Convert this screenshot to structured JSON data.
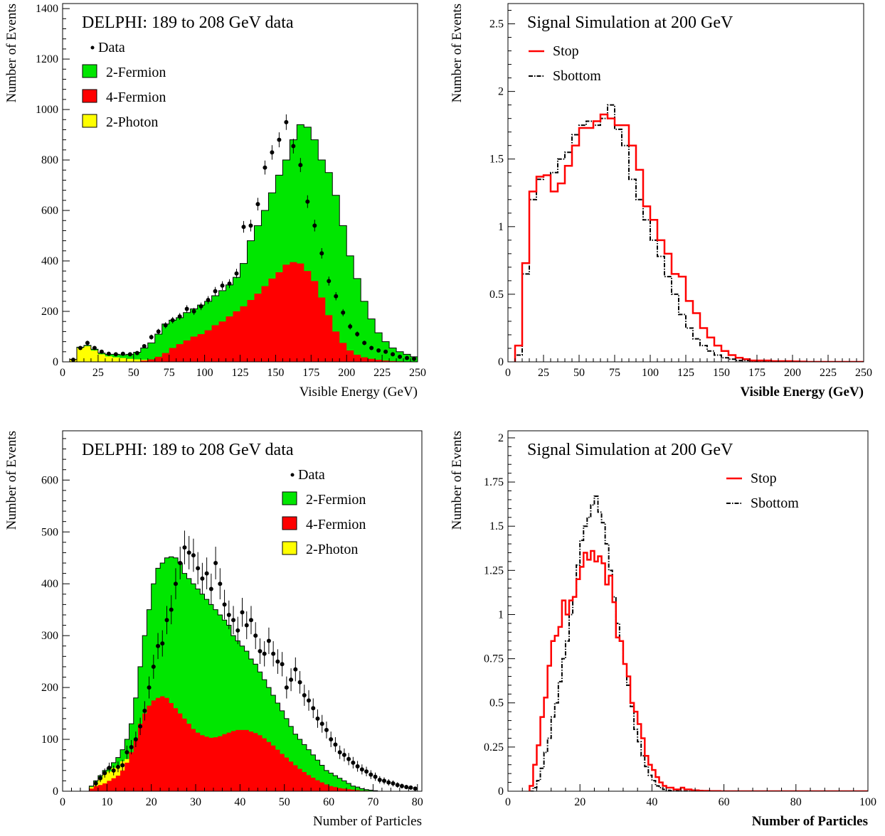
{
  "chart_data": [
    {
      "id": "p1",
      "type": "histogram",
      "title": "DELPHI: 189 to 208 GeV data",
      "xlabel": "Visible Energy (GeV)",
      "ylabel": "Number of Events",
      "xlim": [
        0,
        250
      ],
      "ylim": [
        0,
        1420
      ],
      "xticks": [
        0,
        25,
        50,
        75,
        100,
        125,
        150,
        175,
        200,
        225,
        250
      ],
      "yticks": [
        0,
        200,
        400,
        600,
        800,
        1000,
        1200,
        1400
      ],
      "bin_edges_start": 5,
      "bin_width": 5,
      "legend": {
        "data": "Data",
        "f2": "2-Fermion",
        "f4": "4-Fermion",
        "ph2": "2-Photon",
        "position": "top-left"
      },
      "series": [
        {
          "name": "2-Fermion",
          "color": "#00e600",
          "values": [
            10,
            58,
            65,
            50,
            35,
            30,
            30,
            28,
            30,
            38,
            55,
            75,
            110,
            150,
            165,
            175,
            195,
            210,
            225,
            240,
            262,
            282,
            305,
            335,
            390,
            480,
            540,
            600,
            670,
            740,
            800,
            880,
            940,
            930,
            880,
            800,
            750,
            660,
            540,
            420,
            330,
            240,
            170,
            115,
            80,
            55,
            40,
            30,
            20,
            15
          ]
        },
        {
          "name": "4-Fermion",
          "color": "#ff0000",
          "values": [
            0,
            0,
            0,
            0,
            0,
            0,
            0,
            0,
            0,
            0,
            5,
            10,
            20,
            35,
            55,
            70,
            85,
            100,
            110,
            125,
            145,
            160,
            180,
            200,
            220,
            245,
            270,
            300,
            330,
            355,
            385,
            395,
            390,
            360,
            320,
            255,
            185,
            120,
            75,
            45,
            28,
            18,
            12,
            8,
            5,
            3,
            2,
            1,
            1,
            0
          ]
        },
        {
          "name": "2-Photon",
          "color": "#ffff00",
          "values": [
            10,
            55,
            62,
            45,
            30,
            22,
            18,
            15,
            12,
            10,
            8,
            6,
            5,
            4,
            3,
            3,
            2,
            2,
            2,
            2,
            1,
            1,
            1,
            1,
            1,
            1,
            1,
            1,
            1,
            1,
            1,
            1,
            1,
            1,
            1,
            0,
            0,
            0,
            0,
            0,
            0,
            0,
            0,
            0,
            0,
            0,
            0,
            0,
            0,
            0
          ]
        },
        {
          "name": "Data",
          "x": [
            7.5,
            12.5,
            17.5,
            22.5,
            27.5,
            32.5,
            37.5,
            42.5,
            47.5,
            52.5,
            57.5,
            62.5,
            67.5,
            72.5,
            77.5,
            82.5,
            87.5,
            92.5,
            97.5,
            102.5,
            107.5,
            112.5,
            117.5,
            122.5,
            127.5,
            132.5,
            137.5,
            142.5,
            147.5,
            152.5,
            157.5,
            162.5,
            167.5,
            172.5,
            177.5,
            182.5,
            187.5,
            192.5,
            197.5,
            202.5,
            207.5,
            212.5,
            217.5,
            222.5,
            227.5,
            232.5,
            237.5,
            242.5,
            247.5
          ],
          "values": [
            8,
            55,
            75,
            55,
            40,
            32,
            30,
            32,
            30,
            35,
            62,
            98,
            120,
            145,
            165,
            180,
            210,
            200,
            220,
            245,
            280,
            302,
            310,
            350,
            535,
            540,
            625,
            770,
            830,
            880,
            950,
            855,
            780,
            635,
            540,
            430,
            320,
            260,
            195,
            140,
            110,
            75,
            55,
            45,
            40,
            30,
            20,
            15,
            12
          ]
        }
      ]
    },
    {
      "id": "p2",
      "type": "line",
      "title": "Signal Simulation at 200 GeV",
      "xlabel": "Visible Energy (GeV)",
      "ylabel": "Number of Events",
      "xlim": [
        0,
        250
      ],
      "ylim": [
        0,
        2.65
      ],
      "xticks": [
        0,
        25,
        50,
        75,
        100,
        125,
        150,
        175,
        200,
        225,
        250
      ],
      "yticks": [
        0,
        0.5,
        1,
        1.5,
        2,
        2.5
      ],
      "bin_edges_start": 5,
      "bin_width": 5,
      "legend": {
        "stop": "Stop",
        "sbottom": "Sbottom",
        "position": "top-left"
      },
      "series": [
        {
          "name": "Stop",
          "color": "#ff0000",
          "values": [
            0.12,
            0.73,
            1.26,
            1.37,
            1.38,
            1.26,
            1.32,
            1.45,
            1.6,
            1.73,
            1.73,
            1.78,
            1.83,
            1.8,
            1.75,
            1.75,
            1.6,
            1.42,
            1.15,
            1.05,
            0.9,
            0.8,
            0.65,
            0.63,
            0.45,
            0.36,
            0.25,
            0.18,
            0.12,
            0.08,
            0.05,
            0.03,
            0.02,
            0.01,
            0.01,
            0.01,
            0.005,
            0.005,
            0.005,
            0.003,
            0.002,
            0.0,
            0.0,
            0.0,
            0.0,
            0.0,
            0.0,
            0.0,
            0.0
          ]
        },
        {
          "name": "Sbottom",
          "color": "#000000",
          "values": [
            0.05,
            0.65,
            1.2,
            1.35,
            1.38,
            1.4,
            1.5,
            1.55,
            1.68,
            1.75,
            1.78,
            1.75,
            1.8,
            1.9,
            1.72,
            1.6,
            1.35,
            1.2,
            1.05,
            0.9,
            0.78,
            0.63,
            0.5,
            0.35,
            0.25,
            0.17,
            0.12,
            0.08,
            0.05,
            0.03,
            0.02,
            0.01,
            0.01,
            0.005,
            0.005,
            0.003,
            0.002,
            0.0,
            0.0,
            0.0,
            0.0,
            0.0,
            0.0,
            0.0,
            0.0,
            0.0,
            0.0,
            0.0,
            0.0
          ]
        }
      ]
    },
    {
      "id": "p3",
      "type": "histogram",
      "title": "DELPHI: 189 to 208 GeV data",
      "xlabel": "Number of Particles",
      "ylabel": "Number of Events",
      "xlim": [
        0,
        81
      ],
      "ylim": [
        0,
        695
      ],
      "xticks": [
        0,
        10,
        20,
        30,
        40,
        50,
        60,
        70,
        80
      ],
      "yticks": [
        0,
        100,
        200,
        300,
        400,
        500,
        600
      ],
      "bin_edges_start": 6,
      "bin_width": 1,
      "legend": {
        "data": "Data",
        "f2": "2-Fermion",
        "f4": "4-Fermion",
        "ph2": "2-Photon",
        "position": "top-right"
      },
      "series": [
        {
          "name": "2-Fermion",
          "color": "#00e600",
          "values": [
            10,
            20,
            30,
            40,
            45,
            55,
            65,
            80,
            100,
            130,
            180,
            240,
            300,
            350,
            400,
            430,
            440,
            450,
            452,
            450,
            440,
            420,
            410,
            400,
            390,
            380,
            370,
            360,
            350,
            340,
            330,
            320,
            300,
            290,
            280,
            270,
            255,
            245,
            230,
            215,
            200,
            185,
            170,
            155,
            140,
            125,
            110,
            100,
            90,
            80,
            70,
            60,
            50,
            40,
            35,
            30,
            25,
            20,
            15,
            10,
            8,
            5,
            3,
            2,
            1
          ]
        },
        {
          "name": "4-Fermion",
          "color": "#ff0000",
          "values": [
            5,
            10,
            12,
            15,
            20,
            25,
            30,
            40,
            55,
            75,
            100,
            130,
            150,
            165,
            175,
            180,
            183,
            180,
            170,
            160,
            150,
            140,
            130,
            120,
            113,
            108,
            105,
            103,
            104,
            106,
            110,
            113,
            116,
            118,
            118,
            118,
            115,
            112,
            108,
            102,
            95,
            88,
            80,
            72,
            65,
            57,
            50,
            43,
            37,
            31,
            26,
            21,
            17,
            13,
            10,
            8,
            6,
            5,
            4,
            3,
            2,
            1,
            1,
            0,
            0
          ]
        },
        {
          "name": "2-Photon",
          "color": "#ffff00",
          "values": [
            8,
            18,
            25,
            35,
            38,
            45,
            50,
            58,
            62,
            60,
            55,
            30,
            20,
            12,
            8,
            5,
            4,
            3,
            2,
            1,
            1,
            1,
            0,
            0,
            0,
            0,
            0,
            0,
            0,
            0,
            0,
            0,
            0,
            0,
            0,
            0,
            0,
            0,
            0,
            0,
            0,
            0,
            0,
            0,
            0,
            0,
            0,
            0,
            0,
            0,
            0,
            0,
            0,
            0,
            0,
            0,
            0,
            0,
            0,
            0,
            0,
            0,
            0,
            0,
            0
          ]
        },
        {
          "name": "Data",
          "x": [
            7.5,
            8.5,
            9.5,
            10.5,
            11.5,
            12.5,
            13.5,
            14.5,
            15.5,
            16.5,
            17.5,
            18.5,
            19.5,
            20.5,
            21.5,
            22.5,
            23.5,
            24.5,
            25.5,
            26.5,
            27.5,
            28.5,
            29.5,
            30.5,
            31.5,
            32.5,
            33.5,
            34.5,
            35.5,
            36.5,
            37.5,
            38.5,
            39.5,
            40.5,
            41.5,
            42.5,
            43.5,
            44.5,
            45.5,
            46.5,
            47.5,
            48.5,
            49.5,
            50.5,
            51.5,
            52.5,
            53.5,
            54.5,
            55.5,
            56.5,
            57.5,
            58.5,
            59.5,
            60.5,
            61.5,
            62.5,
            63.5,
            64.5,
            65.5,
            66.5,
            67.5,
            68.5,
            69.5,
            70.5,
            71.5,
            72.5,
            73.5,
            74.5,
            75.5,
            76.5,
            77.5,
            78.5,
            79.5
          ],
          "values": [
            15,
            25,
            35,
            45,
            40,
            47,
            50,
            75,
            85,
            100,
            125,
            155,
            200,
            240,
            280,
            285,
            330,
            350,
            400,
            440,
            470,
            460,
            455,
            430,
            410,
            420,
            390,
            440,
            400,
            360,
            340,
            330,
            310,
            345,
            320,
            330,
            300,
            270,
            265,
            290,
            265,
            250,
            245,
            200,
            215,
            235,
            210,
            185,
            175,
            160,
            140,
            130,
            118,
            100,
            90,
            75,
            70,
            62,
            55,
            48,
            42,
            38,
            32,
            28,
            22,
            20,
            17,
            15,
            12,
            10,
            8,
            7,
            5
          ]
        }
      ]
    },
    {
      "id": "p4",
      "type": "line",
      "title": "Signal Simulation at 200 GeV",
      "xlabel": "Number of Particles",
      "ylabel": "Number of Events",
      "xlim": [
        0,
        100
      ],
      "ylim": [
        0,
        2.04
      ],
      "xticks": [
        0,
        20,
        40,
        60,
        80,
        100
      ],
      "yticks": [
        0,
        0.25,
        0.5,
        0.75,
        1,
        1.25,
        1.5,
        1.75,
        2
      ],
      "bin_edges_start": 6,
      "bin_width": 1,
      "legend": {
        "stop": "Stop",
        "sbottom": "Sbottom",
        "position": "top-right"
      },
      "series": [
        {
          "name": "Stop",
          "color": "#ff0000",
          "values": [
            0.03,
            0.15,
            0.26,
            0.42,
            0.53,
            0.71,
            0.85,
            0.88,
            0.93,
            1.08,
            1.0,
            1.08,
            1.1,
            1.2,
            1.27,
            1.35,
            1.31,
            1.36,
            1.3,
            1.33,
            1.29,
            1.17,
            1.22,
            1.07,
            0.87,
            0.85,
            0.72,
            0.65,
            0.5,
            0.45,
            0.38,
            0.3,
            0.2,
            0.15,
            0.12,
            0.08,
            0.05,
            0.03,
            0.02,
            0.02,
            0.01,
            0.01,
            0.02,
            0.01,
            0.01,
            0.005,
            0.005,
            0.003,
            0.002,
            0.002,
            0.001,
            0.001,
            0.001,
            0.0,
            0.0,
            0.0,
            0.0,
            0.0,
            0.0,
            0.0,
            0.0,
            0.0,
            0.0,
            0.0,
            0.0,
            0.0,
            0.0,
            0.0,
            0.0,
            0.0,
            0.0,
            0.0,
            0.0,
            0.0,
            0.0,
            0.0,
            0.0,
            0.0,
            0.0,
            0.0,
            0.0,
            0.0,
            0.0,
            0.0,
            0.0,
            0.0,
            0.0,
            0.0,
            0.0,
            0.0,
            0.0,
            0.0,
            0.0,
            0.0
          ]
        },
        {
          "name": "Sbottom",
          "color": "#000000",
          "values": [
            0.0,
            0.02,
            0.06,
            0.13,
            0.22,
            0.3,
            0.42,
            0.5,
            0.62,
            0.75,
            0.85,
            1.0,
            1.1,
            1.28,
            1.42,
            1.5,
            1.55,
            1.62,
            1.67,
            1.58,
            1.52,
            1.4,
            1.25,
            1.1,
            0.95,
            0.85,
            0.72,
            0.6,
            0.48,
            0.35,
            0.28,
            0.2,
            0.14,
            0.09,
            0.06,
            0.03,
            0.02,
            0.01,
            0.005,
            0.003,
            0.002,
            0.001,
            0.0,
            0.0,
            0.0,
            0.0,
            0.0,
            0.0,
            0.0,
            0.0,
            0.0,
            0.0,
            0.0,
            0.0,
            0.0,
            0.0,
            0.0,
            0.0,
            0.0,
            0.0,
            0.0,
            0.0,
            0.0,
            0.0,
            0.0,
            0.0,
            0.0,
            0.0,
            0.0,
            0.0,
            0.0,
            0.0,
            0.0,
            0.0,
            0.0,
            0.0,
            0.0,
            0.0,
            0.0,
            0.0,
            0.0,
            0.0,
            0.0,
            0.0,
            0.0,
            0.0,
            0.0,
            0.0,
            0.0,
            0.0,
            0.0,
            0.0,
            0.0,
            0.0
          ]
        }
      ]
    }
  ]
}
